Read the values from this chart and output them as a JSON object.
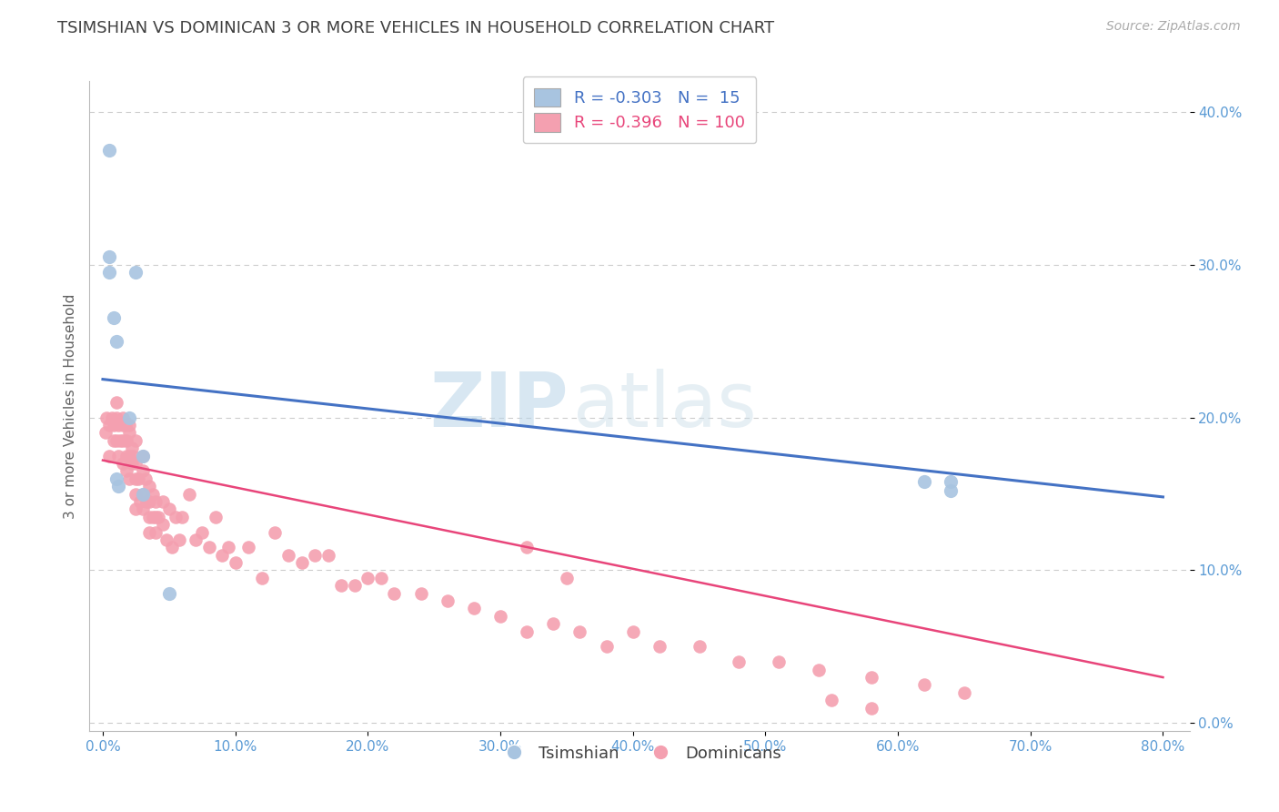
{
  "title": "TSIMSHIAN VS DOMINICAN 3 OR MORE VEHICLES IN HOUSEHOLD CORRELATION CHART",
  "source_text": "Source: ZipAtlas.com",
  "ylabel": "3 or more Vehicles in Household",
  "xlim": [
    -0.01,
    0.82
  ],
  "ylim": [
    -0.005,
    0.42
  ],
  "x_ticks": [
    0.0,
    0.1,
    0.2,
    0.3,
    0.4,
    0.5,
    0.6,
    0.7,
    0.8
  ],
  "x_tick_labels": [
    "0.0%",
    "10.0%",
    "20.0%",
    "30.0%",
    "40.0%",
    "50.0%",
    "60.0%",
    "70.0%",
    "80.0%"
  ],
  "y_ticks": [
    0.0,
    0.1,
    0.2,
    0.3,
    0.4
  ],
  "y_tick_labels": [
    "0.0%",
    "10.0%",
    "20.0%",
    "30.0%",
    "40.0%"
  ],
  "r_tsimshian": -0.303,
  "n_tsimshian": 15,
  "r_dominican": -0.396,
  "n_dominican": 100,
  "tsimshian_color": "#a8c4e0",
  "dominican_color": "#f4a0b0",
  "tsimshian_line_color": "#4472c4",
  "dominican_line_color": "#e8457a",
  "legend_label_tsimshian": "Tsimshian",
  "legend_label_dominican": "Dominicans",
  "background_color": "#ffffff",
  "grid_color": "#cccccc",
  "title_color": "#404040",
  "axis_tick_color": "#5b9bd5",
  "watermark_zip": "ZIP",
  "watermark_atlas": "atlas",
  "tsimshian_x": [
    0.005,
    0.005,
    0.005,
    0.008,
    0.01,
    0.01,
    0.012,
    0.02,
    0.025,
    0.03,
    0.03,
    0.05,
    0.62,
    0.64,
    0.64
  ],
  "tsimshian_y": [
    0.375,
    0.305,
    0.295,
    0.265,
    0.25,
    0.16,
    0.155,
    0.2,
    0.295,
    0.175,
    0.15,
    0.085,
    0.158,
    0.158,
    0.152
  ],
  "dominican_x": [
    0.002,
    0.003,
    0.005,
    0.005,
    0.007,
    0.008,
    0.008,
    0.01,
    0.01,
    0.01,
    0.012,
    0.012,
    0.013,
    0.015,
    0.015,
    0.015,
    0.015,
    0.017,
    0.018,
    0.018,
    0.018,
    0.02,
    0.02,
    0.02,
    0.02,
    0.022,
    0.022,
    0.023,
    0.025,
    0.025,
    0.025,
    0.025,
    0.025,
    0.027,
    0.028,
    0.03,
    0.03,
    0.03,
    0.03,
    0.032,
    0.033,
    0.035,
    0.035,
    0.035,
    0.035,
    0.038,
    0.038,
    0.04,
    0.04,
    0.04,
    0.042,
    0.045,
    0.045,
    0.048,
    0.05,
    0.052,
    0.055,
    0.058,
    0.06,
    0.065,
    0.07,
    0.075,
    0.08,
    0.085,
    0.09,
    0.095,
    0.1,
    0.11,
    0.12,
    0.13,
    0.14,
    0.15,
    0.16,
    0.17,
    0.18,
    0.19,
    0.2,
    0.21,
    0.22,
    0.24,
    0.26,
    0.28,
    0.3,
    0.32,
    0.34,
    0.36,
    0.38,
    0.4,
    0.42,
    0.45,
    0.48,
    0.51,
    0.54,
    0.58,
    0.62,
    0.65,
    0.32,
    0.35,
    0.55,
    0.58
  ],
  "dominican_y": [
    0.19,
    0.2,
    0.195,
    0.175,
    0.2,
    0.195,
    0.185,
    0.21,
    0.2,
    0.185,
    0.195,
    0.175,
    0.185,
    0.2,
    0.195,
    0.185,
    0.17,
    0.195,
    0.175,
    0.185,
    0.165,
    0.195,
    0.19,
    0.175,
    0.16,
    0.18,
    0.17,
    0.175,
    0.185,
    0.17,
    0.16,
    0.15,
    0.14,
    0.16,
    0.145,
    0.175,
    0.165,
    0.15,
    0.14,
    0.16,
    0.145,
    0.155,
    0.145,
    0.135,
    0.125,
    0.15,
    0.135,
    0.145,
    0.135,
    0.125,
    0.135,
    0.145,
    0.13,
    0.12,
    0.14,
    0.115,
    0.135,
    0.12,
    0.135,
    0.15,
    0.12,
    0.125,
    0.115,
    0.135,
    0.11,
    0.115,
    0.105,
    0.115,
    0.095,
    0.125,
    0.11,
    0.105,
    0.11,
    0.11,
    0.09,
    0.09,
    0.095,
    0.095,
    0.085,
    0.085,
    0.08,
    0.075,
    0.07,
    0.06,
    0.065,
    0.06,
    0.05,
    0.06,
    0.05,
    0.05,
    0.04,
    0.04,
    0.035,
    0.03,
    0.025,
    0.02,
    0.115,
    0.095,
    0.015,
    0.01
  ],
  "line_tsim_x0": 0.0,
  "line_tsim_y0": 0.225,
  "line_tsim_x1": 0.8,
  "line_tsim_y1": 0.148,
  "line_dom_x0": 0.0,
  "line_dom_y0": 0.172,
  "line_dom_x1": 0.8,
  "line_dom_y1": 0.03
}
